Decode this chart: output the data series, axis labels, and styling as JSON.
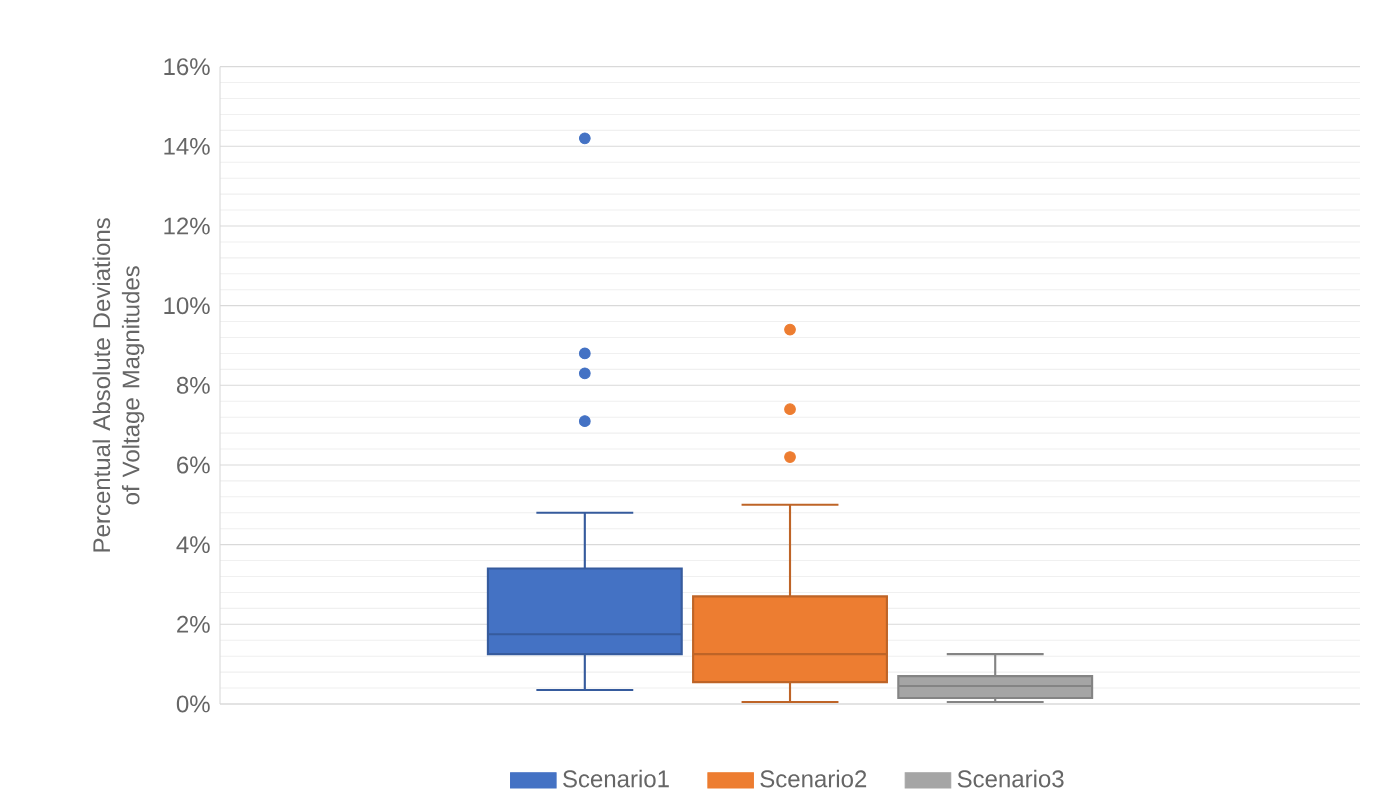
{
  "chart_data": {
    "type": "box",
    "ylabel": "Percentual Absolute Deviations of Voltage Magnitudes",
    "categories": [
      null
    ],
    "series": [
      {
        "name": "Scenario1",
        "color": "#4472c4",
        "boxes": [
          {
            "low": 0.35,
            "q1": 1.25,
            "median": 1.75,
            "q3": 3.4,
            "high": 4.8,
            "outliers": [
              7.1,
              8.3,
              8.8,
              14.2
            ]
          }
        ]
      },
      {
        "name": "Scenario2",
        "color": "#ed7d31",
        "boxes": [
          {
            "low": 0.05,
            "q1": 0.55,
            "median": 1.25,
            "q3": 2.7,
            "high": 5.0,
            "outliers": [
              6.2,
              7.4,
              9.4
            ]
          }
        ]
      },
      {
        "name": "Scenario3",
        "color": "#a5a5a5",
        "boxes": [
          {
            "low": 0.05,
            "q1": 0.15,
            "median": 0.45,
            "q3": 0.7,
            "high": 1.25
          }
        ]
      }
    ],
    "ylim": [
      0,
      16
    ],
    "yticks": [
      {
        "value": 0,
        "label": "0%"
      },
      {
        "value": 2,
        "label": "2%"
      },
      {
        "value": 4,
        "label": "4%"
      },
      {
        "value": 6,
        "label": "6%"
      },
      {
        "value": 8,
        "label": "8%"
      },
      {
        "value": 10,
        "label": "10%"
      },
      {
        "value": 12,
        "label": "12%"
      },
      {
        "value": 14,
        "label": "14%"
      },
      {
        "value": 16,
        "label": "16%"
      }
    ],
    "grid": "y",
    "legend": "bottom"
  }
}
